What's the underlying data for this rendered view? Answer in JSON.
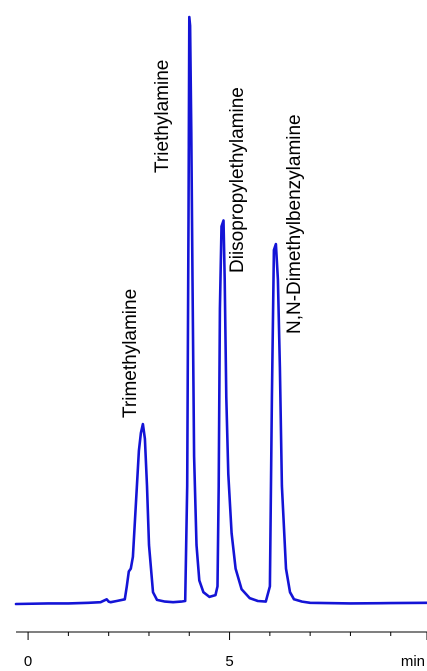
{
  "chart_data": {
    "type": "line",
    "xlabel": "min",
    "xlim": [
      -0.3,
      9.9
    ],
    "ylim": [
      0,
      100
    ],
    "x_ticks": [
      {
        "value": 0,
        "label": "0"
      },
      {
        "value": 5,
        "label": "5"
      },
      {
        "value": 9.9,
        "label": "min"
      }
    ],
    "minor_ticks": [
      1,
      2,
      3,
      4,
      6,
      7,
      8,
      9
    ],
    "line_color": "#1414d6",
    "series": [
      {
        "x": [
          -0.3,
          0.5,
          1.0,
          1.5,
          1.8,
          1.95,
          2.0,
          2.05,
          2.2,
          2.4,
          2.45,
          2.5,
          2.55,
          2.6,
          2.7,
          2.75,
          2.8,
          2.85,
          2.9,
          2.95,
          3.0,
          3.1,
          3.2,
          3.4,
          3.6,
          3.8,
          3.9,
          3.95,
          3.98,
          4.0,
          4.02,
          4.05,
          4.08,
          4.12,
          4.18,
          4.25,
          4.35,
          4.5,
          4.65,
          4.7,
          4.73,
          4.76,
          4.8,
          4.85,
          4.88,
          4.92,
          4.97,
          5.05,
          5.15,
          5.3,
          5.5,
          5.7,
          5.9,
          6.0,
          6.05,
          6.1,
          6.15,
          6.2,
          6.25,
          6.3,
          6.4,
          6.5,
          6.6,
          6.8,
          7.0,
          8.0,
          9.0,
          9.9
        ],
        "y": [
          0,
          0.1,
          0.1,
          0.2,
          0.3,
          0.8,
          0.4,
          0.3,
          0.5,
          0.8,
          3,
          5.5,
          6,
          8,
          20,
          26,
          29,
          30.5,
          28,
          20,
          10,
          2,
          0.7,
          0.4,
          0.3,
          0.4,
          0.5,
          20,
          65,
          99.5,
          98,
          80,
          55,
          25,
          10,
          4,
          2,
          1.2,
          1.5,
          3,
          20,
          50,
          64,
          65,
          55,
          35,
          22,
          12,
          6,
          2.5,
          1,
          0.5,
          0.4,
          3,
          35,
          60,
          61,
          55,
          40,
          20,
          6,
          2,
          0.8,
          0.4,
          0.2,
          0.1,
          0.15,
          0.2
        ]
      }
    ],
    "annotations": [
      {
        "text": "Trimethylamine",
        "x": 2.85
      },
      {
        "text": "Triethylamine",
        "x": 3.65
      },
      {
        "text": "Diisopropylethylamine",
        "x": 5.4
      },
      {
        "text": "N,N-Dimethylbenzylamine",
        "x": 6.8
      }
    ]
  }
}
